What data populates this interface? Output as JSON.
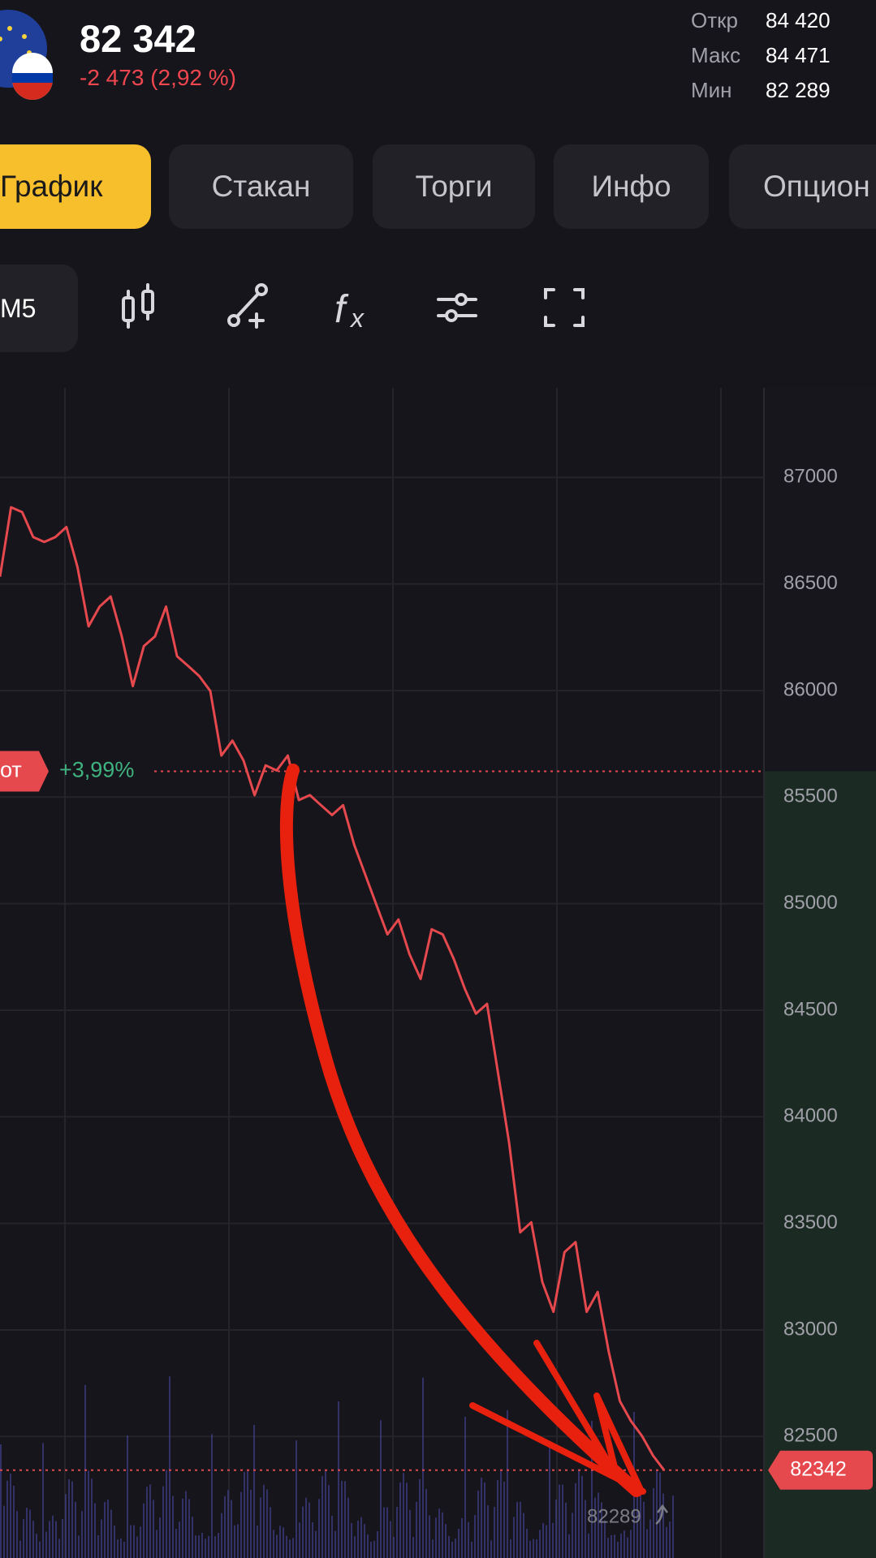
{
  "header": {
    "price": "82 342",
    "change": "-2 473 (2,92 %)",
    "stats": [
      {
        "label": "Откр",
        "value": "84 420"
      },
      {
        "label": "Макс",
        "value": "84 471"
      },
      {
        "label": "Мин",
        "value": "82 289"
      }
    ]
  },
  "tabs": [
    "График",
    "Стакан",
    "Торги",
    "Инфо",
    "Опцион"
  ],
  "toolbar": {
    "timeframe": "M5"
  },
  "chart_data": {
    "type": "line",
    "color": "#e5484d",
    "values": [
      86534,
      86860,
      86837,
      86720,
      86697,
      86720,
      86767,
      86580,
      86301,
      86394,
      86441,
      86254,
      86021,
      86208,
      86254,
      86394,
      86161,
      86115,
      86068,
      85998,
      85695,
      85765,
      85672,
      85509,
      85649,
      85625,
      85695,
      85486,
      85509,
      85462,
      85416,
      85462,
      85276,
      85136,
      84996,
      84856,
      84926,
      84763,
      84647,
      84880,
      84856,
      84740,
      84600,
      84484,
      84530,
      84204,
      83878,
      83458,
      83505,
      83225,
      83085,
      83365,
      83412,
      83085,
      83178,
      82898,
      82666,
      82573,
      82503,
      82410,
      82342
    ],
    "ylim": [
      81930,
      87420
    ],
    "yticks": [
      82500,
      83000,
      83500,
      84000,
      84500,
      85000,
      85500,
      86000,
      86500,
      87000
    ],
    "grid": true,
    "level": {
      "value": 85621,
      "label": "+3,99%",
      "tag": "от"
    },
    "last_price": 82342,
    "low": 82289
  }
}
